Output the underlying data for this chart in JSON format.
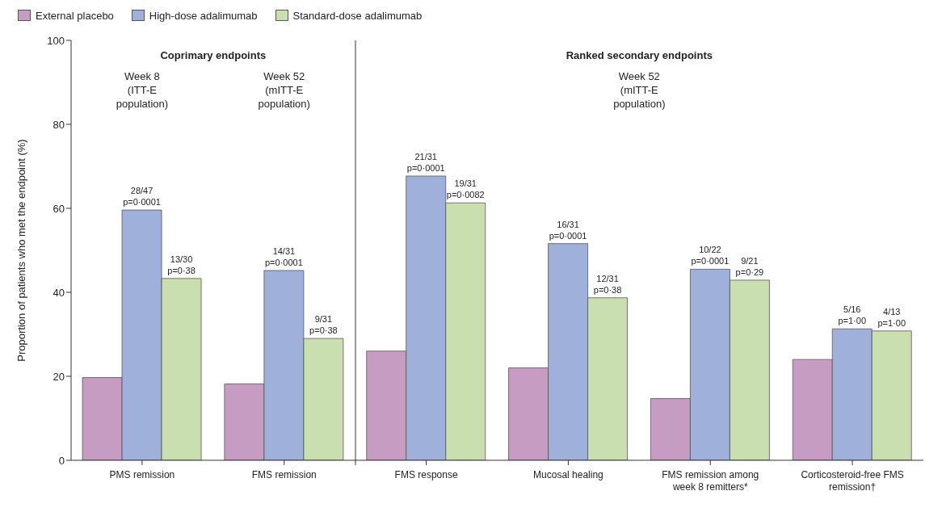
{
  "chart_data": {
    "type": "bar",
    "ylabel": "Proportion of patients who met the endpoint (%)",
    "categories": [
      "PMS remission",
      "FMS remission",
      "FMS response",
      "Mucosal healing",
      "FMS remission among week 8 remitters*",
      "Corticosteroid-free FMS remission†"
    ],
    "series": [
      {
        "name": "External placebo",
        "color": "#c69cc2",
        "values": [
          19.7,
          18.2,
          26,
          22,
          14.7,
          24
        ],
        "value_labels": [
          null,
          null,
          null,
          null,
          null,
          null
        ]
      },
      {
        "name": "High-dose adalimumab",
        "color": "#9fb0da",
        "values": [
          59.6,
          45.2,
          67.7,
          51.6,
          45.5,
          31.3
        ],
        "value_labels": [
          "28/47\np=0·0001",
          "14/31\np=0·0001",
          "21/31\np=0·0001",
          "16/31\np=0·0001",
          "10/22\np=0·0001",
          "5/16\np=1·00"
        ]
      },
      {
        "name": "Standard-dose adalimumab",
        "color": "#c9dfb0",
        "values": [
          43.3,
          29.0,
          61.3,
          38.7,
          42.9,
          30.8
        ],
        "value_labels": [
          "13/30\np=0·38",
          "9/31\np=0·38",
          "19/31\np=0·0082",
          "12/31\np=0·38",
          "9/21\np=0·29",
          "4/13\np=1·00"
        ]
      }
    ],
    "ylim": [
      0,
      100
    ],
    "yticks": [
      0,
      20,
      40,
      60,
      80,
      100
    ],
    "grid": false,
    "legend": "top left",
    "annotations": [
      "Coprimary endpoints",
      "Ranked secondary endpoints",
      "Week 8\n(ITT-E\npopulation)",
      "Week 52\n(mITT-E\npopulation)",
      "Week 52\n(mITT-E\npopulation)"
    ]
  }
}
